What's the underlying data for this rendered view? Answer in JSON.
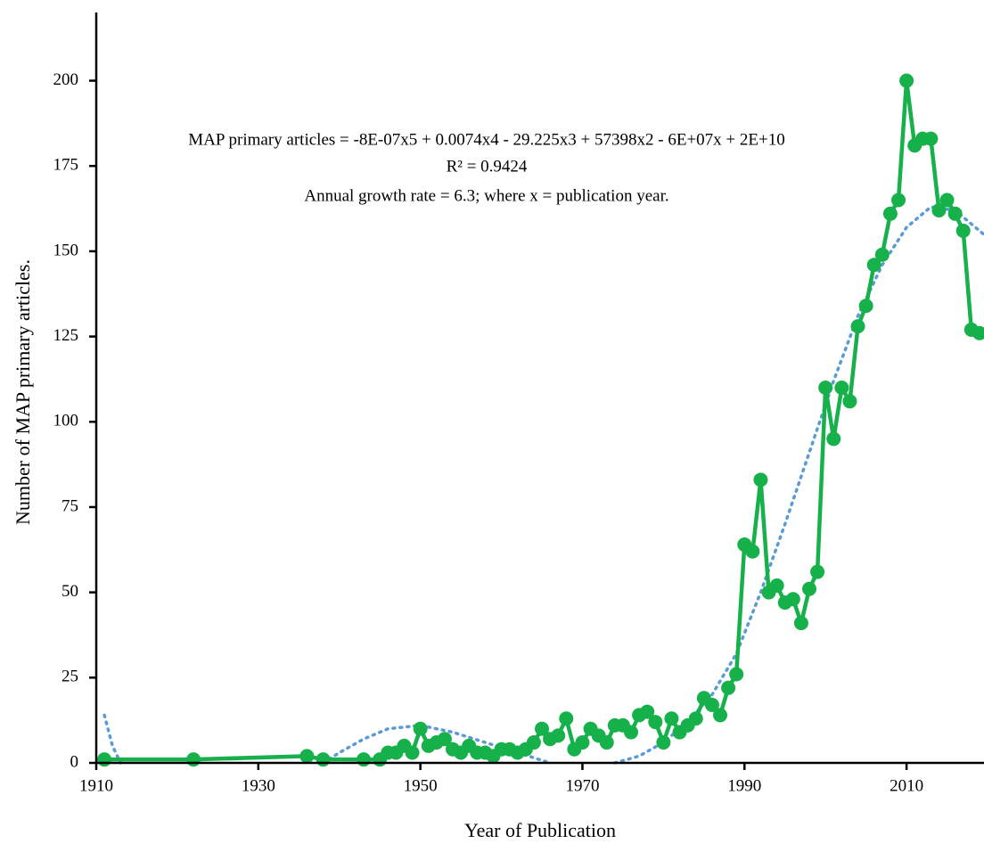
{
  "chart_data": {
    "type": "line",
    "y_label": "Number of MAP primary articles.",
    "x_label": "Year of Publication",
    "annotations": [
      "MAP primary articles = -8E-07x5 + 0.0074x4 - 29.225x3 + 57398x2 - 6E+07x + 2E+10",
      "R² = 0.9424",
      "Annual growth rate = 6.3; where x = publication year."
    ],
    "x": [
      1911,
      1922,
      1936,
      1938,
      1943,
      1945,
      1946,
      1947,
      1948,
      1949,
      1950,
      1951,
      1952,
      1953,
      1954,
      1955,
      1956,
      1957,
      1958,
      1959,
      1960,
      1961,
      1962,
      1963,
      1964,
      1965,
      1966,
      1967,
      1968,
      1969,
      1970,
      1971,
      1972,
      1973,
      1974,
      1975,
      1976,
      1977,
      1978,
      1979,
      1980,
      1981,
      1982,
      1983,
      1984,
      1985,
      1986,
      1987,
      1988,
      1989,
      1990,
      1991,
      1992,
      1993,
      1994,
      1995,
      1996,
      1997,
      1998,
      1999,
      2000,
      2001,
      2002,
      2003,
      2004,
      2005,
      2006,
      2007,
      2008,
      2009,
      2010,
      2011,
      2012,
      2013,
      2014,
      2015,
      2016,
      2017,
      2018,
      2019
    ],
    "series": [
      {
        "color": "#17b14b",
        "values": [
          1,
          1,
          2,
          1,
          1,
          1,
          3,
          3,
          5,
          3,
          10,
          5,
          6,
          7,
          4,
          3,
          5,
          3,
          3,
          2,
          4,
          4,
          3,
          4,
          6,
          10,
          7,
          8,
          13,
          4,
          6,
          10,
          8,
          6,
          11,
          11,
          9,
          14,
          15,
          12,
          6,
          13,
          9,
          11,
          13,
          19,
          17,
          14,
          22,
          26,
          64,
          62,
          83,
          50,
          52,
          47,
          48,
          41,
          51,
          56,
          110,
          95,
          110,
          106,
          128,
          134,
          146,
          149,
          161,
          165,
          200,
          181,
          183,
          183,
          162,
          165,
          161,
          156,
          127,
          126
        ]
      }
    ],
    "trendline": {
      "color": "#5b9bd5",
      "style": "dotted",
      "x": [
        1911,
        1912,
        1913,
        1926,
        1938,
        1940,
        1943,
        1946,
        1950,
        1954,
        1958,
        1962,
        1966,
        1970,
        1974,
        1977,
        1980,
        1983,
        1986,
        1989,
        1992,
        1995,
        1998,
        2001,
        2004,
        2007,
        2010,
        2013,
        2016,
        2019,
        2020
      ],
      "values": [
        14,
        5,
        0,
        null,
        0,
        3,
        7,
        10,
        11,
        9,
        6,
        3,
        0,
        null,
        0,
        2,
        6,
        12,
        20,
        32,
        50,
        70,
        91,
        112,
        131,
        146,
        157,
        163,
        162,
        156,
        154
      ]
    },
    "xlim": [
      1910,
      2020
    ],
    "xticks": [
      1910,
      1930,
      1950,
      1970,
      1990,
      2010
    ],
    "ylim": [
      0,
      220
    ],
    "yticks": [
      0,
      25,
      50,
      75,
      100,
      125,
      150,
      175,
      200
    ]
  }
}
